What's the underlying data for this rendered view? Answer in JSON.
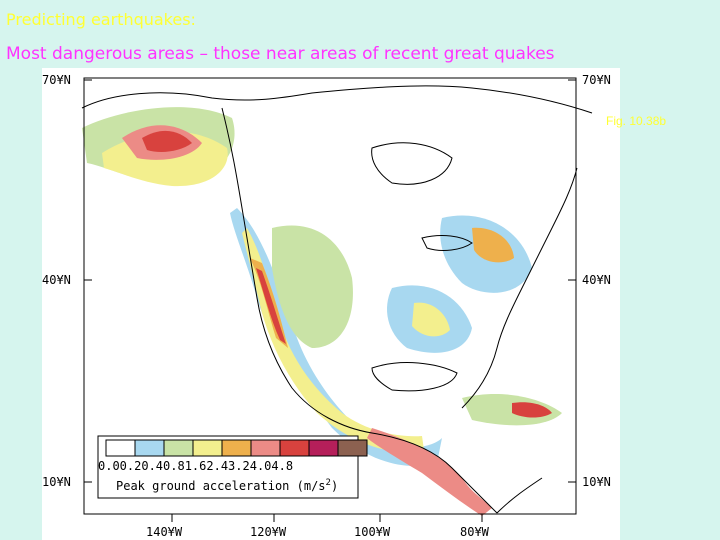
{
  "slide": {
    "title": "Predicting earthquakes:",
    "subtitle": "Most dangerous areas – those near areas of recent great quakes",
    "figure_label": "Fig. 10.38b"
  },
  "map": {
    "lat_labels": [
      "70¥N",
      "40¥N",
      "10¥N"
    ],
    "lon_labels": [
      "140¥W",
      "120¥W",
      "100¥W",
      "80¥W"
    ],
    "legend": {
      "tick_text": "0.00.20.40.81.62.43.24.04.8",
      "title": "Peak ground acceleration (m/s",
      "title_sup": "2",
      "title_end": ")",
      "colors": [
        "#ffffff",
        "#a8d8f0",
        "#c9e3a6",
        "#f3ef8e",
        "#eeb04c",
        "#ec8b86",
        "#d8423e",
        "#b51f5a",
        "#8c6150"
      ]
    },
    "colors": {
      "low": "#a8d8f0",
      "mid": "#c9e3a6",
      "high": "#f3ef8e",
      "orange": "#eeb04c",
      "pink": "#ec8b86",
      "red": "#d8423e"
    }
  }
}
